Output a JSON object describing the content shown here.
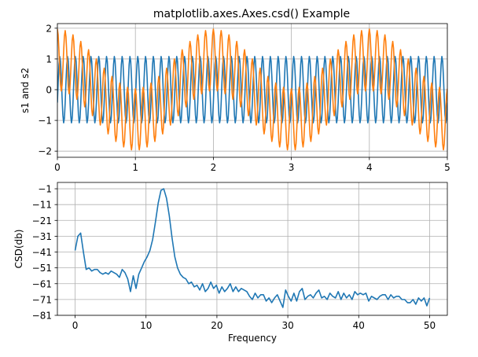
{
  "title": "matplotlib.axes.Axes.csd() Example",
  "chart_data": [
    {
      "type": "line",
      "ylabel": "s1 and s2",
      "xlabel": "",
      "xlim": [
        0,
        5
      ],
      "ylim": [
        -2.2,
        2.15
      ],
      "xticks": [
        0,
        1,
        2,
        3,
        4,
        5
      ],
      "xtick_labels": [
        "0",
        "1",
        "2",
        "3",
        "4",
        "5"
      ],
      "yticks": [
        -2,
        -1,
        0,
        1,
        2
      ],
      "ytick_labels": [
        "−2",
        "−1",
        "0",
        "1",
        "2"
      ],
      "grid": true,
      "series": [
        {
          "color": "#1f77b4",
          "dt": 0.01,
          "x_range": [
            0,
            5
          ],
          "components": [
            {
              "amplitude": 1.0,
              "frequency_hz": 10,
              "phase": 0.0
            },
            {
              "amplitude": 0.42,
              "frequency_hz": 10,
              "phase": 4.71
            }
          ]
        },
        {
          "color": "#ff7f0e",
          "dt": 0.01,
          "x_range": [
            0,
            5
          ],
          "components": [
            {
              "amplitude": 1.0,
              "frequency_hz": 10,
              "phase": 1.57
            },
            {
              "amplitude": 0.97,
              "frequency_hz": 0.5,
              "phase": 1.57
            }
          ]
        }
      ]
    },
    {
      "type": "line",
      "xlabel": "Frequency",
      "ylabel": "CSD(db)",
      "xlim": [
        -2.5,
        52.5
      ],
      "ylim": [
        -81,
        3
      ],
      "xticks": [
        0,
        10,
        20,
        30,
        40,
        50
      ],
      "xtick_labels": [
        "0",
        "10",
        "20",
        "30",
        "40",
        "50"
      ],
      "yticks": [
        -1,
        -11,
        -21,
        -31,
        -41,
        -51,
        -61,
        -71,
        -81
      ],
      "ytick_labels": [
        "−1",
        "−11",
        "−21",
        "−31",
        "−41",
        "−51",
        "−61",
        "−71",
        "−81"
      ],
      "grid": true,
      "series": [
        {
          "color": "#1f77b4",
          "x": [
            0,
            0.39,
            0.78,
            1.17,
            1.56,
            1.95,
            2.34,
            2.73,
            3.13,
            3.52,
            3.91,
            4.3,
            4.69,
            5.08,
            5.47,
            5.86,
            6.25,
            6.64,
            7.03,
            7.42,
            7.81,
            8.2,
            8.59,
            8.98,
            9.38,
            9.77,
            10.16,
            10.55,
            10.94,
            11.33,
            11.72,
            12.11,
            12.5,
            12.89,
            13.28,
            13.67,
            14.06,
            14.45,
            14.84,
            15.23,
            15.63,
            16.02,
            16.41,
            16.8,
            17.19,
            17.58,
            17.97,
            18.36,
            18.75,
            19.14,
            19.53,
            19.92,
            20.31,
            20.7,
            21.09,
            21.48,
            21.88,
            22.27,
            22.66,
            23.05,
            23.44,
            23.83,
            24.22,
            24.61,
            25.0,
            25.39,
            25.78,
            26.17,
            26.56,
            26.95,
            27.34,
            27.73,
            28.13,
            28.52,
            28.91,
            29.3,
            29.69,
            30.08,
            30.47,
            30.86,
            31.25,
            31.64,
            32.03,
            32.42,
            32.81,
            33.2,
            33.59,
            33.98,
            34.38,
            34.77,
            35.16,
            35.55,
            35.94,
            36.33,
            36.72,
            37.11,
            37.5,
            37.89,
            38.28,
            38.67,
            39.06,
            39.45,
            39.84,
            40.23,
            40.63,
            41.02,
            41.41,
            41.8,
            42.19,
            42.58,
            42.97,
            43.36,
            43.75,
            44.14,
            44.53,
            44.92,
            45.31,
            45.7,
            46.09,
            46.48,
            46.88,
            47.27,
            47.66,
            48.05,
            48.44,
            48.83,
            49.22,
            49.61,
            50.0
          ],
          "values": [
            -40,
            -31,
            -29,
            -41,
            -52,
            -51,
            -53,
            -52,
            -52,
            -54,
            -55,
            -54,
            -55,
            -53,
            -54,
            -55,
            -57,
            -52,
            -54,
            -58,
            -66,
            -56,
            -64,
            -55,
            -51,
            -47,
            -44,
            -40,
            -33,
            -22,
            -10,
            -2,
            -1,
            -7,
            -18,
            -32,
            -44,
            -51,
            -55,
            -57,
            -58,
            -61,
            -60,
            -63,
            -62,
            -65,
            -61,
            -66,
            -64,
            -60,
            -64,
            -62,
            -67,
            -63,
            -66,
            -64,
            -61,
            -66,
            -63,
            -66,
            -64,
            -65,
            -66,
            -69,
            -71,
            -67,
            -70,
            -68,
            -68,
            -72,
            -70,
            -73,
            -70,
            -68,
            -72,
            -76,
            -65,
            -69,
            -72,
            -67,
            -72,
            -66,
            -64,
            -71,
            -69,
            -68,
            -70,
            -67,
            -65,
            -70,
            -69,
            -71,
            -67,
            -69,
            -70,
            -66,
            -71,
            -67,
            -70,
            -68,
            -71,
            -66,
            -68,
            -67,
            -68,
            -67,
            -72,
            -69,
            -70,
            -71,
            -69,
            -68,
            -68,
            -71,
            -68,
            -70,
            -69,
            -69,
            -71,
            -71,
            -73,
            -73,
            -71,
            -74,
            -70,
            -72,
            -70,
            -75,
            -70
          ]
        }
      ]
    }
  ]
}
